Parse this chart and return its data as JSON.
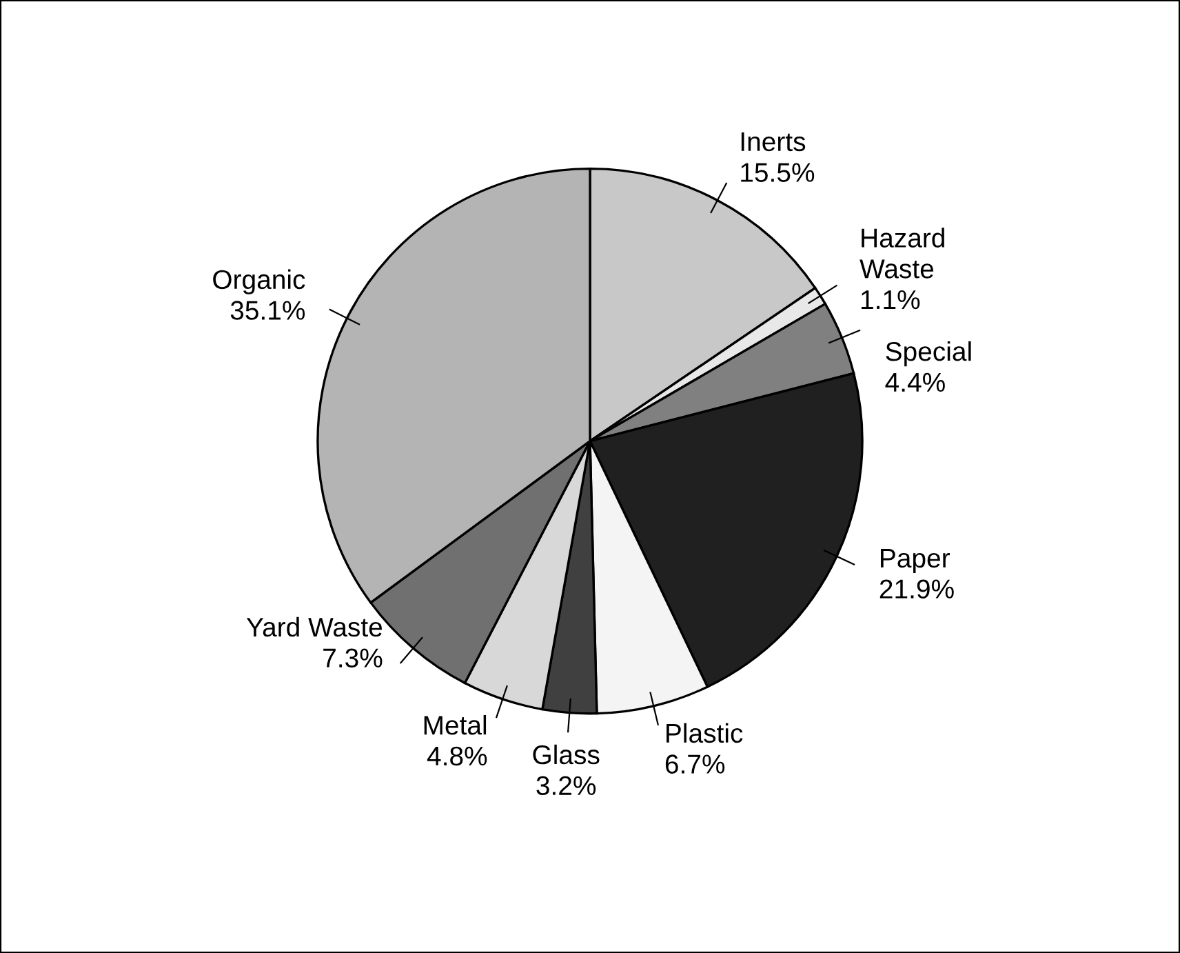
{
  "chart_data": {
    "type": "pie",
    "categories": [
      "Inerts",
      "Hazard\nWaste",
      "Special",
      "Paper",
      "Plastic",
      "Glass",
      "Metal",
      "Yard Waste",
      "Organic"
    ],
    "values": [
      15.5,
      1.1,
      4.4,
      21.9,
      6.7,
      3.2,
      4.8,
      7.3,
      35.1
    ],
    "colors": [
      "#c8c8c8",
      "#e8e8e8",
      "#808080",
      "#202020",
      "#f4f4f4",
      "#404040",
      "#d8d8d8",
      "#707070",
      "#b4b4b4"
    ],
    "value_labels": [
      "15.5%",
      "1.1%",
      "4.4%",
      "21.9%",
      "6.7%",
      "3.2%",
      "4.8%",
      "7.3%",
      "35.1%"
    ],
    "legend": false
  }
}
